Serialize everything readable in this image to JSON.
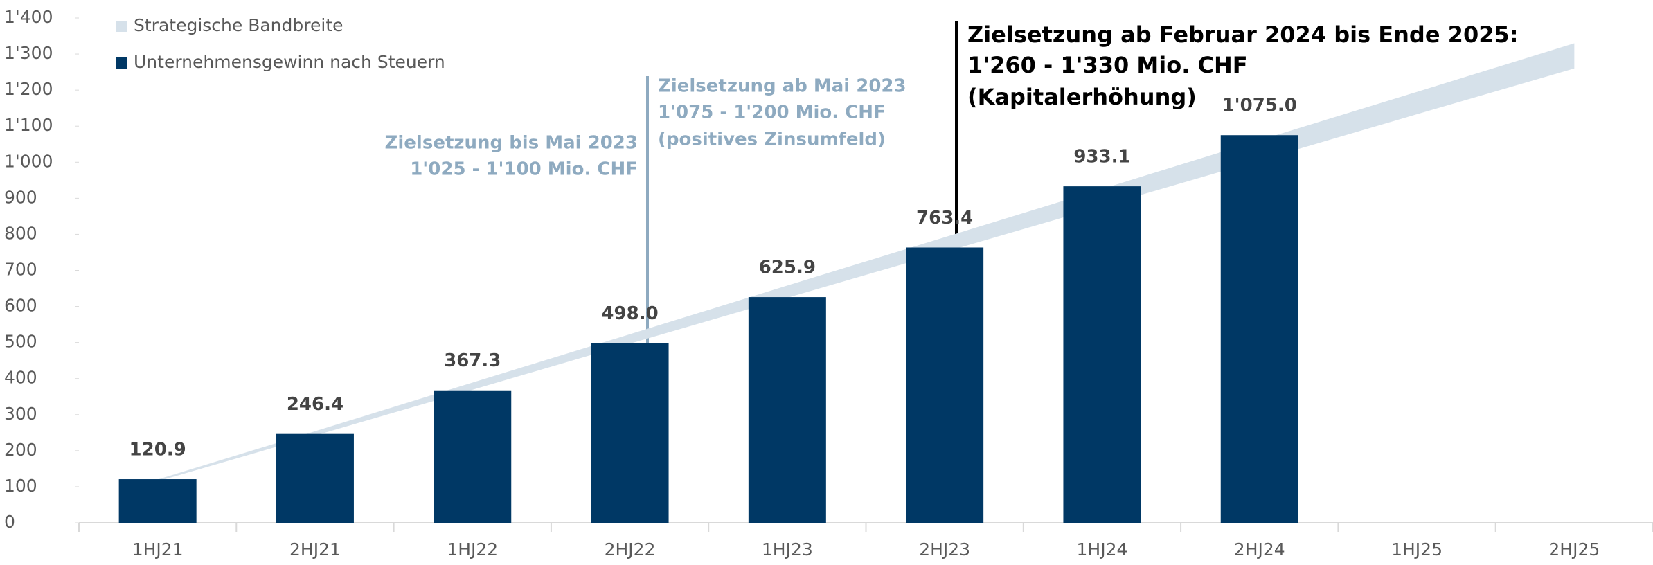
{
  "chart_data": {
    "type": "bar",
    "categories": [
      "1HJ21",
      "2HJ21",
      "1HJ22",
      "2HJ22",
      "1HJ23",
      "2HJ23",
      "1HJ24",
      "2HJ24",
      "1HJ25",
      "2HJ25"
    ],
    "band": {
      "name": "Strategische Bandbreite",
      "color": "#d6e1ea",
      "low": [
        115,
        242,
        369,
        497,
        624,
        751,
        878,
        1005,
        1133,
        1260
      ],
      "high": [
        120,
        254,
        389,
        523,
        658,
        792,
        926,
        1061,
        1195,
        1330
      ]
    },
    "series": [
      {
        "name": "Unternehmensgewinn nach Steuern",
        "color": "#003865",
        "values": [
          120.9,
          246.4,
          367.3,
          498.0,
          625.9,
          763.4,
          933.1,
          1075.0,
          null,
          null
        ],
        "value_labels": [
          "120.9",
          "246.4",
          "367.3",
          "498.0",
          "625.9",
          "763.4",
          "933.1",
          "1'075.0",
          null,
          null
        ]
      }
    ],
    "ylim": [
      0,
      1400
    ],
    "yticks": [
      0,
      100,
      200,
      300,
      400,
      500,
      600,
      700,
      800,
      900,
      {
        "value": 1000,
        "label": "1'000"
      },
      {
        "value": 1100,
        "label": "1'100"
      },
      {
        "value": 1200,
        "label": "1'200"
      },
      {
        "value": 1300,
        "label": "1'300"
      },
      {
        "value": 1400,
        "label": "1'400"
      }
    ],
    "annotations": [
      {
        "lines": [
          "Zielsetzung bis Mai 2023",
          "1'025 - 1'100 Mio. CHF"
        ]
      },
      {
        "lines": [
          "Zielsetzung ab Mai 2023",
          "1'075 - 1'200 Mio. CHF",
          "(positives Zinsumfeld)"
        ]
      },
      {
        "lines": [
          "Zielsetzung ab Februar 2024 bis Ende 2025:",
          "1'260 - 1'330 Mio. CHF",
          "(Kapitalerhöhung)"
        ]
      }
    ]
  }
}
